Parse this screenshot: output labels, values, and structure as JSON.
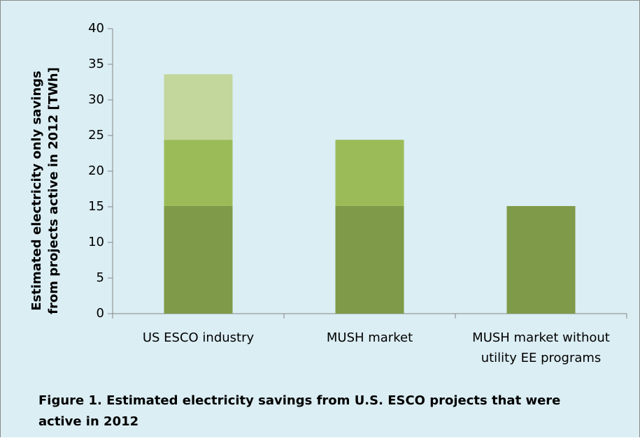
{
  "chart_data": {
    "type": "bar",
    "stacked": true,
    "y_label": "Estimated electricity only savings from projects active in 2012 [TWh]",
    "caption": "Figure 1. Estimated electricity savings from U.S. ESCO projects that were active in 2012",
    "categories": [
      "US ESCO industry",
      "MUSH market",
      "MUSH market without utility EE programs"
    ],
    "series": [
      {
        "color": "#7f9a48",
        "values": [
          15.1,
          15.1,
          15.1
        ]
      },
      {
        "color": "#9bbb59",
        "values": [
          9.3,
          9.3,
          null
        ]
      },
      {
        "color": "#c3d69b",
        "values": [
          9.2,
          null,
          null
        ]
      }
    ],
    "ylim": [
      0,
      40
    ],
    "yticks": [
      0,
      5,
      10,
      15,
      20,
      25,
      30,
      35,
      40
    ]
  }
}
